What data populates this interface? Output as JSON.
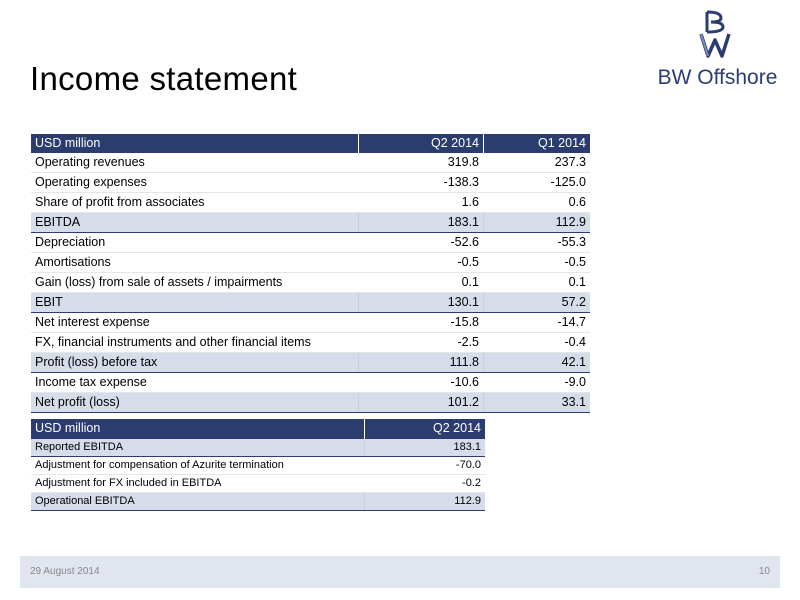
{
  "title": "Income statement",
  "logo": {
    "brand": "BW Offshore"
  },
  "income_table": {
    "headers": [
      "USD million",
      "Q2 2014",
      "Q1 2014"
    ],
    "rows": [
      {
        "label": "Operating revenues",
        "q2": "319.8",
        "q1": "237.3",
        "style": "row"
      },
      {
        "label": "Operating expenses",
        "q2": "-138.3",
        "q1": "-125.0",
        "style": "row"
      },
      {
        "label": "Share of profit from associates",
        "q2": "1.6",
        "q1": "0.6",
        "style": "row"
      },
      {
        "label": "EBITDA",
        "q2": "183.1",
        "q1": "112.9",
        "style": "sub"
      },
      {
        "label": "Depreciation",
        "q2": "-52.6",
        "q1": "-55.3",
        "style": "row"
      },
      {
        "label": "Amortisations",
        "q2": "-0.5",
        "q1": "-0.5",
        "style": "row"
      },
      {
        "label": "Gain (loss) from sale of assets / impairments",
        "q2": "0.1",
        "q1": "0.1",
        "style": "row"
      },
      {
        "label": "EBIT",
        "q2": "130.1",
        "q1": "57.2",
        "style": "sub"
      },
      {
        "label": "Net interest expense",
        "q2": "-15.8",
        "q1": "-14.7",
        "style": "row"
      },
      {
        "label": "FX, financial instruments and other financial items",
        "q2": "-2.5",
        "q1": "-0.4",
        "style": "row"
      },
      {
        "label": "Profit (loss) before tax",
        "q2": "111.8",
        "q1": "42.1",
        "style": "sub"
      },
      {
        "label": "Income tax expense",
        "q2": "-10.6",
        "q1": "-9.0",
        "style": "row"
      },
      {
        "label": "Net profit (loss)",
        "q2": "101.2",
        "q1": "33.1",
        "style": "sub"
      }
    ]
  },
  "ebitda_table": {
    "headers": [
      "USD million",
      "Q2 2014"
    ],
    "rows": [
      {
        "label": "Reported EBITDA",
        "q2": "183.1",
        "style": "sub"
      },
      {
        "label": "Adjustment for compensation of Azurite termination",
        "q2": "-70.0",
        "style": "row"
      },
      {
        "label": "Adjustment for FX included in EBITDA",
        "q2": "-0.2",
        "style": "row"
      },
      {
        "label": "Operational EBITDA",
        "q2": "112.9",
        "style": "sub"
      }
    ]
  },
  "footer": {
    "date": "29 August 2014",
    "page": "10"
  }
}
